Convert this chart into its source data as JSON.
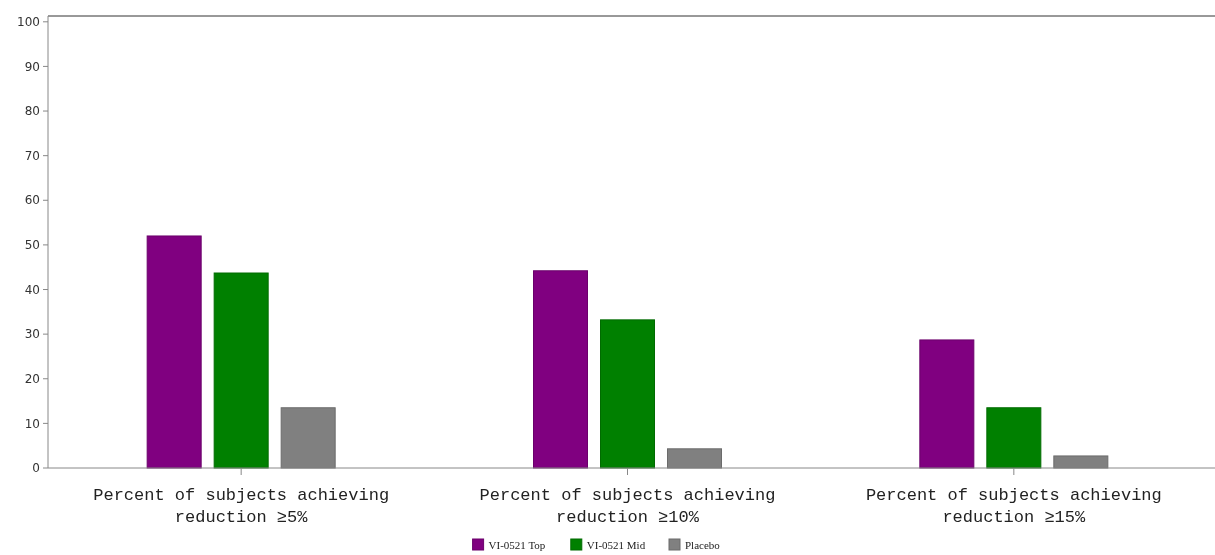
{
  "chart_data": {
    "type": "bar",
    "categories": [
      "Percent of subjects achieving reduction ≥5%",
      "Percent of subjects achieving reduction ≥10%",
      "Percent of subjects achieving reduction ≥15%"
    ],
    "series": [
      {
        "name": "VI-0521 Top",
        "color": "#800080",
        "values": [
          52.0,
          44.2,
          28.7
        ]
      },
      {
        "name": "VI-0521 Mid",
        "color": "#008000",
        "values": [
          43.7,
          33.2,
          13.5
        ]
      },
      {
        "name": "Placebo",
        "color": "#808080",
        "values": [
          13.5,
          4.3,
          2.7
        ]
      }
    ],
    "ylim": [
      0,
      101.3
    ],
    "yticks": [
      0,
      10,
      20,
      30,
      40,
      50,
      60,
      70,
      80,
      90,
      100
    ],
    "grid": false,
    "legend": "bottom"
  }
}
